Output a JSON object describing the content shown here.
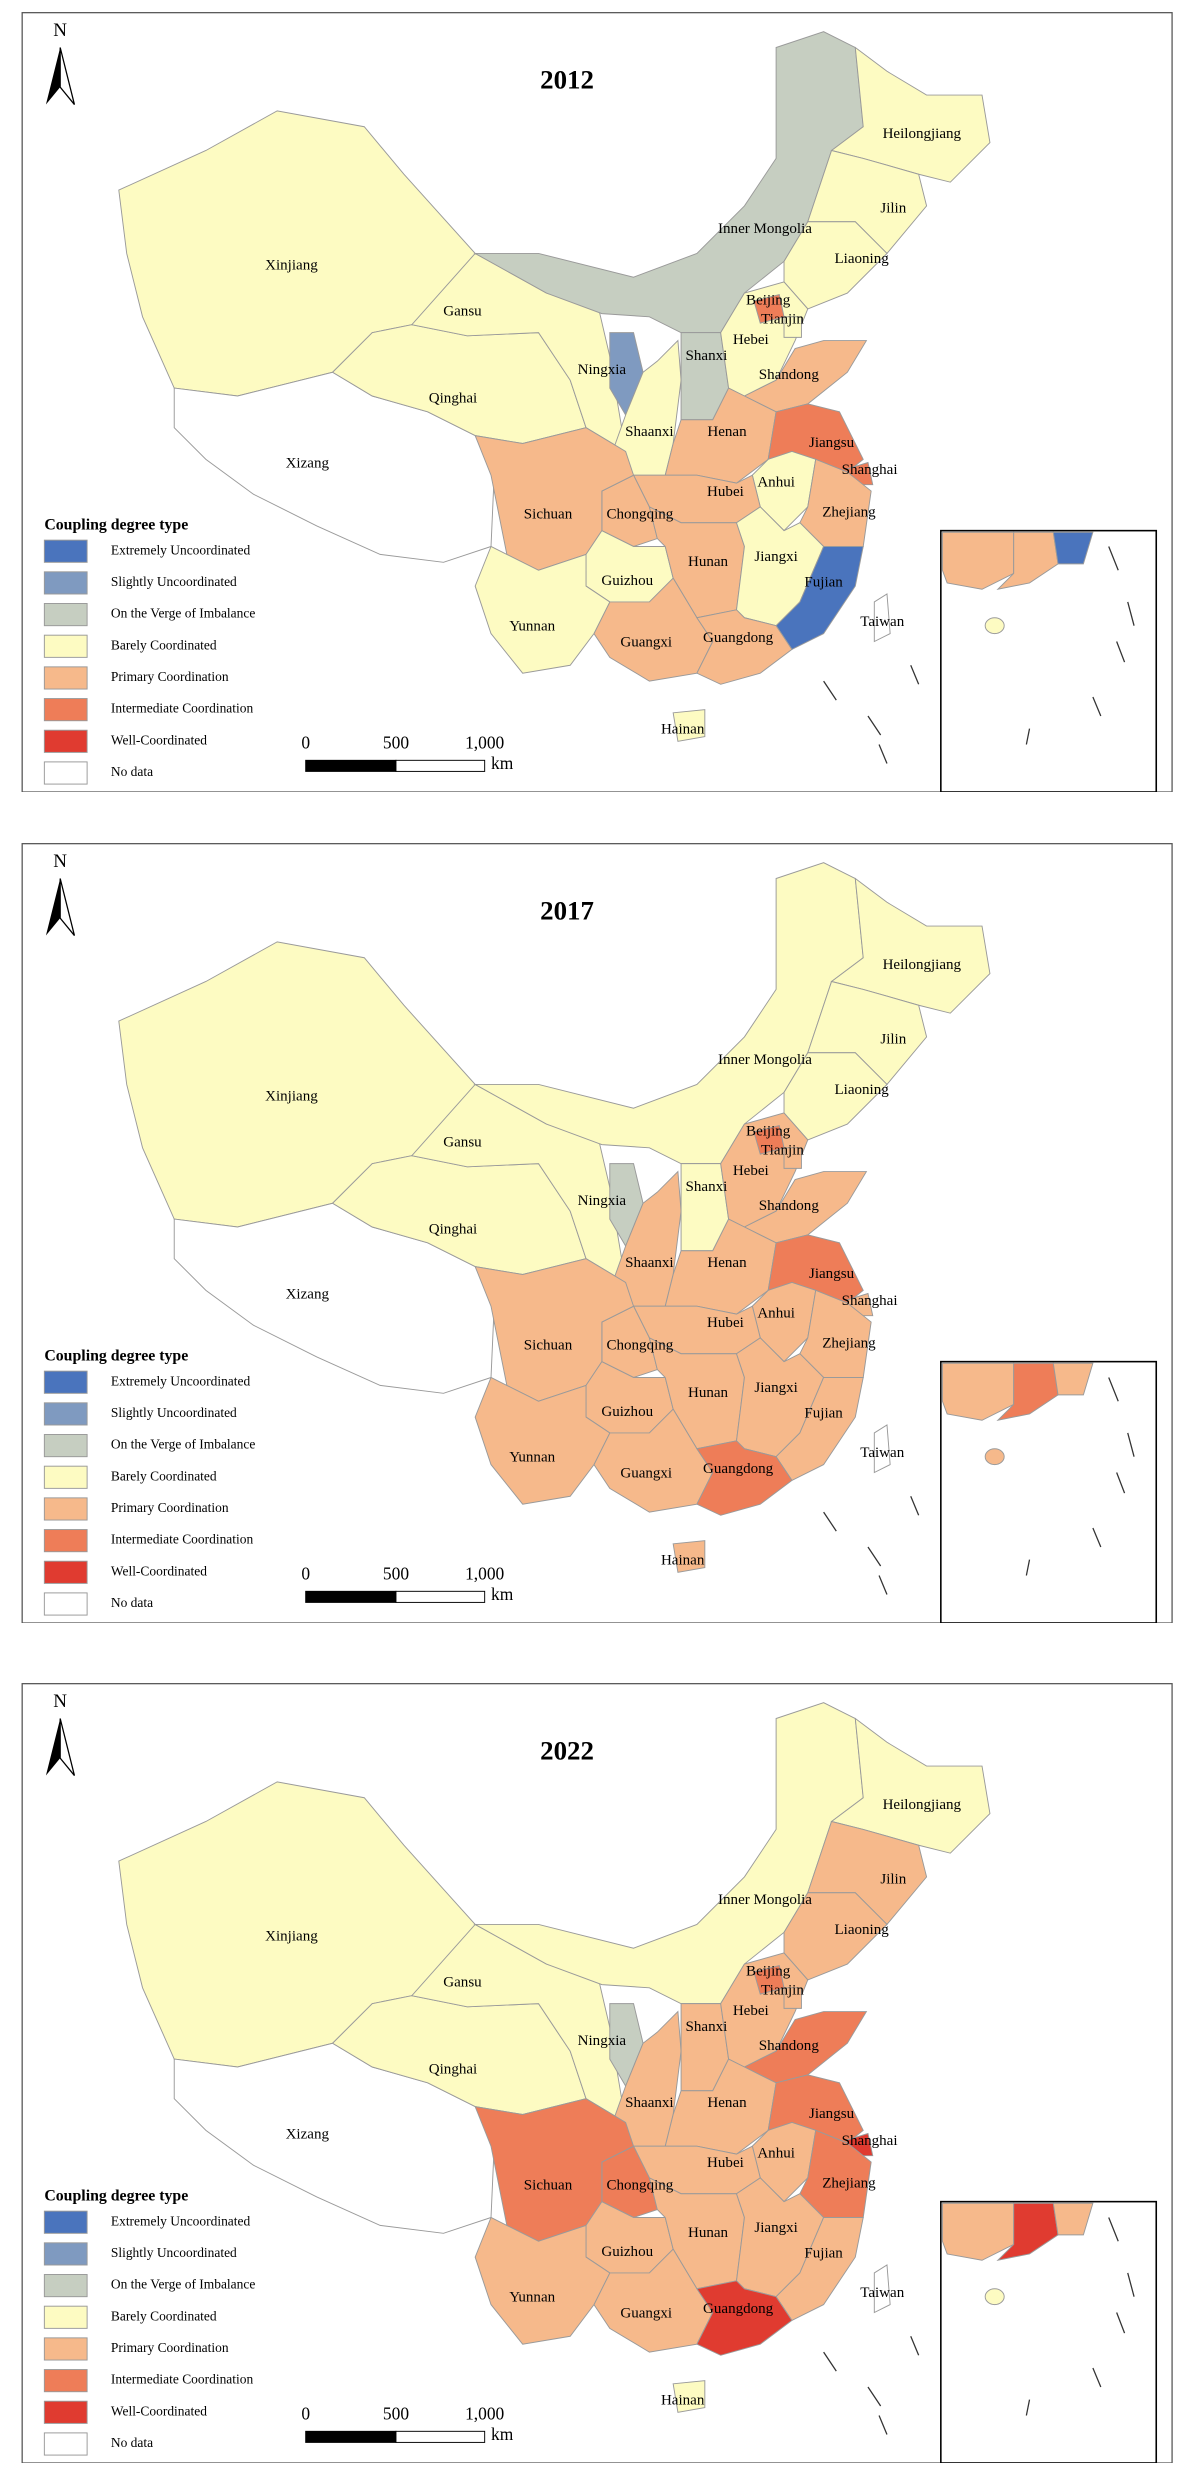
{
  "north": "N",
  "legend": {
    "title": "Coupling degree type",
    "items": [
      {
        "label": "Extremely Uncoordinated",
        "color": "#4a74bd"
      },
      {
        "label": "Slightly Uncoordinated",
        "color": "#7f9ac0"
      },
      {
        "label": "On the Verge of Imbalance",
        "color": "#c6cec1"
      },
      {
        "label": "Barely Coordinated",
        "color": "#fdfbc2"
      },
      {
        "label": "Primary Coordination",
        "color": "#f6b98b"
      },
      {
        "label": "Intermediate Coordination",
        "color": "#ee7d58"
      },
      {
        "label": "Well-Coordinated",
        "color": "#e03b30"
      },
      {
        "label": "No data",
        "color": "#ffffff"
      }
    ]
  },
  "scale_bar": {
    "labels": [
      "0",
      "500",
      "1,000"
    ],
    "unit": "km"
  },
  "maps": [
    {
      "title": "2012",
      "provinces": [
        {
          "name": "Xinjiang",
          "class": "Barely Coordinated"
        },
        {
          "name": "Xizang",
          "class": "No data"
        },
        {
          "name": "Qinghai",
          "class": "Barely Coordinated"
        },
        {
          "name": "Gansu",
          "class": "Barely Coordinated"
        },
        {
          "name": "Inner Mongolia",
          "class": "On the Verge of Imbalance"
        },
        {
          "name": "Heilongjiang",
          "class": "Barely Coordinated"
        },
        {
          "name": "Jilin",
          "class": "Barely Coordinated"
        },
        {
          "name": "Liaoning",
          "class": "Barely Coordinated"
        },
        {
          "name": "Ningxia",
          "class": "Slightly Uncoordinated"
        },
        {
          "name": "Shaanxi",
          "class": "Barely Coordinated"
        },
        {
          "name": "Shanxi",
          "class": "On the Verge of Imbalance"
        },
        {
          "name": "Hebei",
          "class": "Barely Coordinated"
        },
        {
          "name": "Beijing",
          "class": "Intermediate Coordination"
        },
        {
          "name": "Tianjin",
          "class": "Barely Coordinated"
        },
        {
          "name": "Shandong",
          "class": "Primary Coordination"
        },
        {
          "name": "Henan",
          "class": "Primary Coordination"
        },
        {
          "name": "Jiangsu",
          "class": "Intermediate Coordination"
        },
        {
          "name": "Shanghai",
          "class": "Intermediate Coordination"
        },
        {
          "name": "Anhui",
          "class": "Barely Coordinated"
        },
        {
          "name": "Zhejiang",
          "class": "Primary Coordination"
        },
        {
          "name": "Hubei",
          "class": "Primary Coordination"
        },
        {
          "name": "Chongqing",
          "class": "Primary Coordination"
        },
        {
          "name": "Sichuan",
          "class": "Primary Coordination"
        },
        {
          "name": "Guizhou",
          "class": "Barely Coordinated"
        },
        {
          "name": "Hunan",
          "class": "Primary Coordination"
        },
        {
          "name": "Jiangxi",
          "class": "Barely Coordinated"
        },
        {
          "name": "Fujian",
          "class": "Extremely Uncoordinated"
        },
        {
          "name": "Guangxi",
          "class": "Primary Coordination"
        },
        {
          "name": "Guangdong",
          "class": "Primary Coordination"
        },
        {
          "name": "Yunnan",
          "class": "Barely Coordinated"
        },
        {
          "name": "Hainan",
          "class": "Barely Coordinated"
        },
        {
          "name": "Taiwan",
          "class": "No data"
        }
      ]
    },
    {
      "title": "2017",
      "provinces": [
        {
          "name": "Xinjiang",
          "class": "Barely Coordinated"
        },
        {
          "name": "Xizang",
          "class": "No data"
        },
        {
          "name": "Qinghai",
          "class": "Barely Coordinated"
        },
        {
          "name": "Gansu",
          "class": "Barely Coordinated"
        },
        {
          "name": "Inner Mongolia",
          "class": "Barely Coordinated"
        },
        {
          "name": "Heilongjiang",
          "class": "Barely Coordinated"
        },
        {
          "name": "Jilin",
          "class": "Barely Coordinated"
        },
        {
          "name": "Liaoning",
          "class": "Barely Coordinated"
        },
        {
          "name": "Ningxia",
          "class": "On the Verge of Imbalance"
        },
        {
          "name": "Shaanxi",
          "class": "Primary Coordination"
        },
        {
          "name": "Shanxi",
          "class": "Barely Coordinated"
        },
        {
          "name": "Hebei",
          "class": "Primary Coordination"
        },
        {
          "name": "Beijing",
          "class": "Intermediate Coordination"
        },
        {
          "name": "Tianjin",
          "class": "Primary Coordination"
        },
        {
          "name": "Shandong",
          "class": "Primary Coordination"
        },
        {
          "name": "Henan",
          "class": "Primary Coordination"
        },
        {
          "name": "Jiangsu",
          "class": "Intermediate Coordination"
        },
        {
          "name": "Shanghai",
          "class": "Primary Coordination"
        },
        {
          "name": "Anhui",
          "class": "Primary Coordination"
        },
        {
          "name": "Zhejiang",
          "class": "Primary Coordination"
        },
        {
          "name": "Hubei",
          "class": "Primary Coordination"
        },
        {
          "name": "Chongqing",
          "class": "Primary Coordination"
        },
        {
          "name": "Sichuan",
          "class": "Primary Coordination"
        },
        {
          "name": "Guizhou",
          "class": "Primary Coordination"
        },
        {
          "name": "Hunan",
          "class": "Primary Coordination"
        },
        {
          "name": "Jiangxi",
          "class": "Primary Coordination"
        },
        {
          "name": "Fujian",
          "class": "Primary Coordination"
        },
        {
          "name": "Guangxi",
          "class": "Primary Coordination"
        },
        {
          "name": "Guangdong",
          "class": "Intermediate Coordination"
        },
        {
          "name": "Yunnan",
          "class": "Primary Coordination"
        },
        {
          "name": "Hainan",
          "class": "Primary Coordination"
        },
        {
          "name": "Taiwan",
          "class": "No data"
        }
      ]
    },
    {
      "title": "2022",
      "provinces": [
        {
          "name": "Xinjiang",
          "class": "Barely Coordinated"
        },
        {
          "name": "Xizang",
          "class": "No data"
        },
        {
          "name": "Qinghai",
          "class": "Barely Coordinated"
        },
        {
          "name": "Gansu",
          "class": "Barely Coordinated"
        },
        {
          "name": "Inner Mongolia",
          "class": "Barely Coordinated"
        },
        {
          "name": "Heilongjiang",
          "class": "Barely Coordinated"
        },
        {
          "name": "Jilin",
          "class": "Primary Coordination"
        },
        {
          "name": "Liaoning",
          "class": "Primary Coordination"
        },
        {
          "name": "Ningxia",
          "class": "On the Verge of Imbalance"
        },
        {
          "name": "Shaanxi",
          "class": "Primary Coordination"
        },
        {
          "name": "Shanxi",
          "class": "Primary Coordination"
        },
        {
          "name": "Hebei",
          "class": "Primary Coordination"
        },
        {
          "name": "Beijing",
          "class": "Intermediate Coordination"
        },
        {
          "name": "Tianjin",
          "class": "Primary Coordination"
        },
        {
          "name": "Shandong",
          "class": "Intermediate Coordination"
        },
        {
          "name": "Henan",
          "class": "Primary Coordination"
        },
        {
          "name": "Jiangsu",
          "class": "Intermediate Coordination"
        },
        {
          "name": "Shanghai",
          "class": "Well-Coordinated"
        },
        {
          "name": "Anhui",
          "class": "Primary Coordination"
        },
        {
          "name": "Zhejiang",
          "class": "Intermediate Coordination"
        },
        {
          "name": "Hubei",
          "class": "Primary Coordination"
        },
        {
          "name": "Chongqing",
          "class": "Intermediate Coordination"
        },
        {
          "name": "Sichuan",
          "class": "Intermediate Coordination"
        },
        {
          "name": "Guizhou",
          "class": "Primary Coordination"
        },
        {
          "name": "Hunan",
          "class": "Primary Coordination"
        },
        {
          "name": "Jiangxi",
          "class": "Primary Coordination"
        },
        {
          "name": "Fujian",
          "class": "Primary Coordination"
        },
        {
          "name": "Guangxi",
          "class": "Primary Coordination"
        },
        {
          "name": "Guangdong",
          "class": "Well-Coordinated"
        },
        {
          "name": "Yunnan",
          "class": "Primary Coordination"
        },
        {
          "name": "Hainan",
          "class": "Barely Coordinated"
        },
        {
          "name": "Taiwan",
          "class": "No data"
        }
      ]
    }
  ]
}
